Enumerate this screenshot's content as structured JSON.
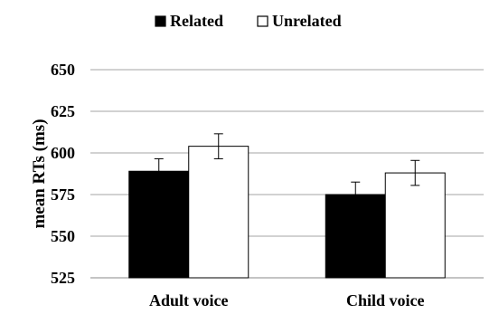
{
  "chart_data": {
    "type": "bar",
    "title": "",
    "xlabel": "",
    "ylabel": "mean RTs (ms)",
    "ylim": [
      525,
      650
    ],
    "yticks": [
      525,
      550,
      575,
      600,
      625,
      650
    ],
    "grid": true,
    "legend_position": "top",
    "categories": [
      "Adult voice",
      "Child voice"
    ],
    "series": [
      {
        "name": "Related",
        "values": [
          589,
          575
        ],
        "errors": [
          7.5,
          7.5
        ],
        "color": "#000000"
      },
      {
        "name": "Unrelated",
        "values": [
          604,
          588
        ],
        "errors": [
          7.5,
          7.5
        ],
        "color": "#ffffff"
      }
    ]
  }
}
